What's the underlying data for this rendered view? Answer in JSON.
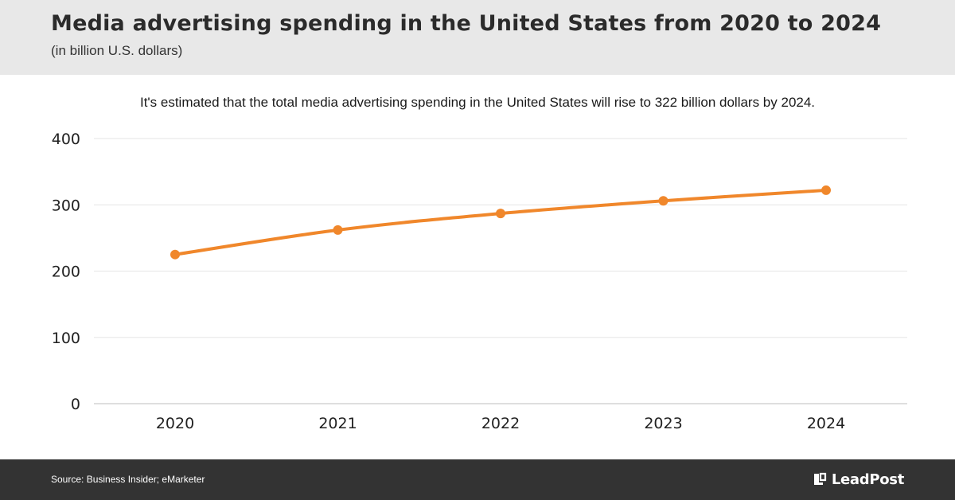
{
  "header": {
    "title": "Media advertising spending in the United States from 2020 to 2024",
    "subtitle": "(in billion U.S. dollars)"
  },
  "note": "It's estimated that the total media advertising spending in the United States will rise to 322 billion dollars by 2024.",
  "chart_data": {
    "type": "line",
    "title": "Media advertising spending in the United States from 2020 to 2024",
    "subtitle": "(in billion U.S. dollars)",
    "xlabel": "",
    "ylabel": "",
    "categories": [
      "2020",
      "2021",
      "2022",
      "2023",
      "2024"
    ],
    "series": [
      {
        "name": "Media advertising spending",
        "values": [
          225,
          262,
          287,
          306,
          322
        ],
        "color": "#f0872b"
      }
    ],
    "ylim": [
      0,
      400
    ],
    "yticks": [
      0,
      100,
      200,
      300,
      400
    ],
    "grid": true,
    "legend": "none"
  },
  "colors": {
    "header_bg": "#e8e8e8",
    "footer_bg": "#333333",
    "line": "#f0872b",
    "grid": "#e6e6e6"
  },
  "footer": {
    "source": "Source: Business Insider; eMarketer",
    "brand": "LeadPost",
    "brand_icon": "leadpost-logo-icon"
  }
}
